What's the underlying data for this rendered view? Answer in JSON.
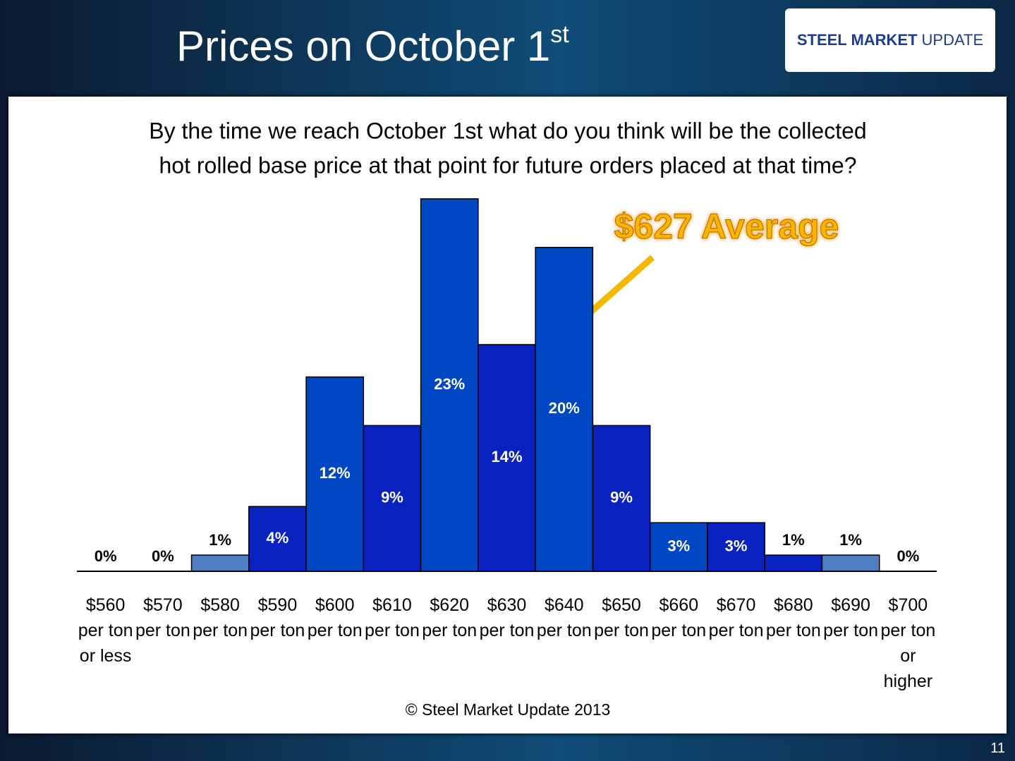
{
  "header": {
    "title": "Prices on October 1",
    "title_sup": "st",
    "logo_bold": "STEEL MARKET",
    "logo_light": "UPDATE"
  },
  "chart_data": {
    "type": "bar",
    "question": [
      "By the time we reach October 1st what do you think will be the collected",
      "hot rolled base price at that point for future orders placed at that time?"
    ],
    "categories": [
      "$560 per ton or less",
      "$570 per ton",
      "$580 per ton",
      "$590 per ton",
      "$600 per ton",
      "$610 per ton",
      "$620 per ton",
      "$630 per ton",
      "$640 per ton",
      "$650 per ton",
      "$660 per ton",
      "$670 per ton",
      "$680 per ton",
      "$690 per ton",
      "$700 per ton or higher"
    ],
    "values": [
      0,
      0,
      1,
      4,
      12,
      9,
      23,
      14,
      20,
      9,
      3,
      3,
      1,
      1,
      0
    ],
    "value_labels": [
      "0%",
      "0%",
      "1%",
      "4%",
      "12%",
      "9%",
      "23%",
      "14%",
      "20%",
      "9%",
      "3%",
      "3%",
      "1%",
      "1%",
      "0%"
    ],
    "colors": [
      "#0047c4",
      "#0a22bf",
      "#4f7fc2",
      "#0a22bf",
      "#0047c4",
      "#0a22bf",
      "#0047c4",
      "#0a22bf",
      "#0047c4",
      "#0a22bf",
      "#0047c4",
      "#0a22bf",
      "#0a22bf",
      "#4f7fc2",
      "#0047c4"
    ],
    "annotation": "$627 Average",
    "source": "© Steel Market Update 2013"
  },
  "page_number": "11"
}
